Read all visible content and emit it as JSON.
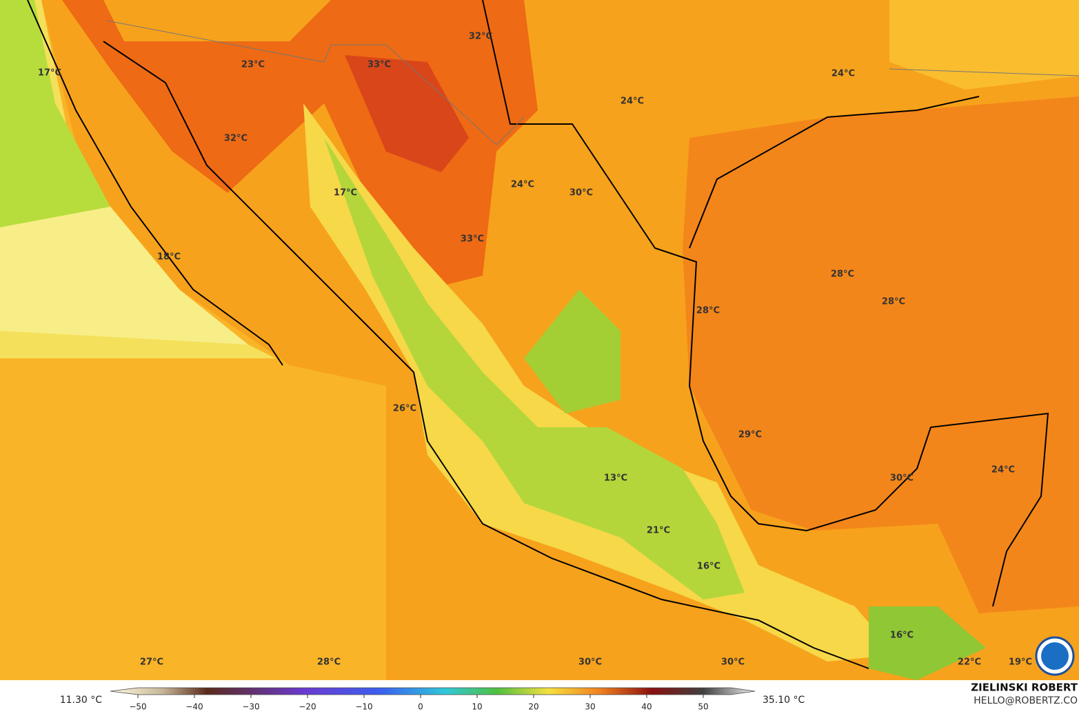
{
  "map": {
    "labels": [
      "17°C",
      "23°C",
      "33°C",
      "32°C",
      "24°C",
      "24°C",
      "32°C",
      "17°C",
      "24°C",
      "30°C",
      "33°C",
      "18°C",
      "28°C",
      "28°C",
      "28°C",
      "26°C",
      "29°C",
      "13°C",
      "30°C",
      "24°C",
      "21°C",
      "16°C",
      "16°C",
      "27°C",
      "28°C",
      "30°C",
      "30°C",
      "22°C",
      "19°C"
    ]
  },
  "colorbar": {
    "min_label": "11.30 °C",
    "max_label": "35.10 °C",
    "ticks": [
      {
        "value": -50,
        "label": "−50"
      },
      {
        "value": -40,
        "label": "−40"
      },
      {
        "value": -30,
        "label": "−30"
      },
      {
        "value": -20,
        "label": "−20"
      },
      {
        "value": -10,
        "label": "−10"
      },
      0,
      10,
      20,
      30,
      40,
      50
    ]
  },
  "credits": {
    "author": "ZIELINSKI ROBERT",
    "email": "HELLO@ROBERTZ.CO"
  }
}
